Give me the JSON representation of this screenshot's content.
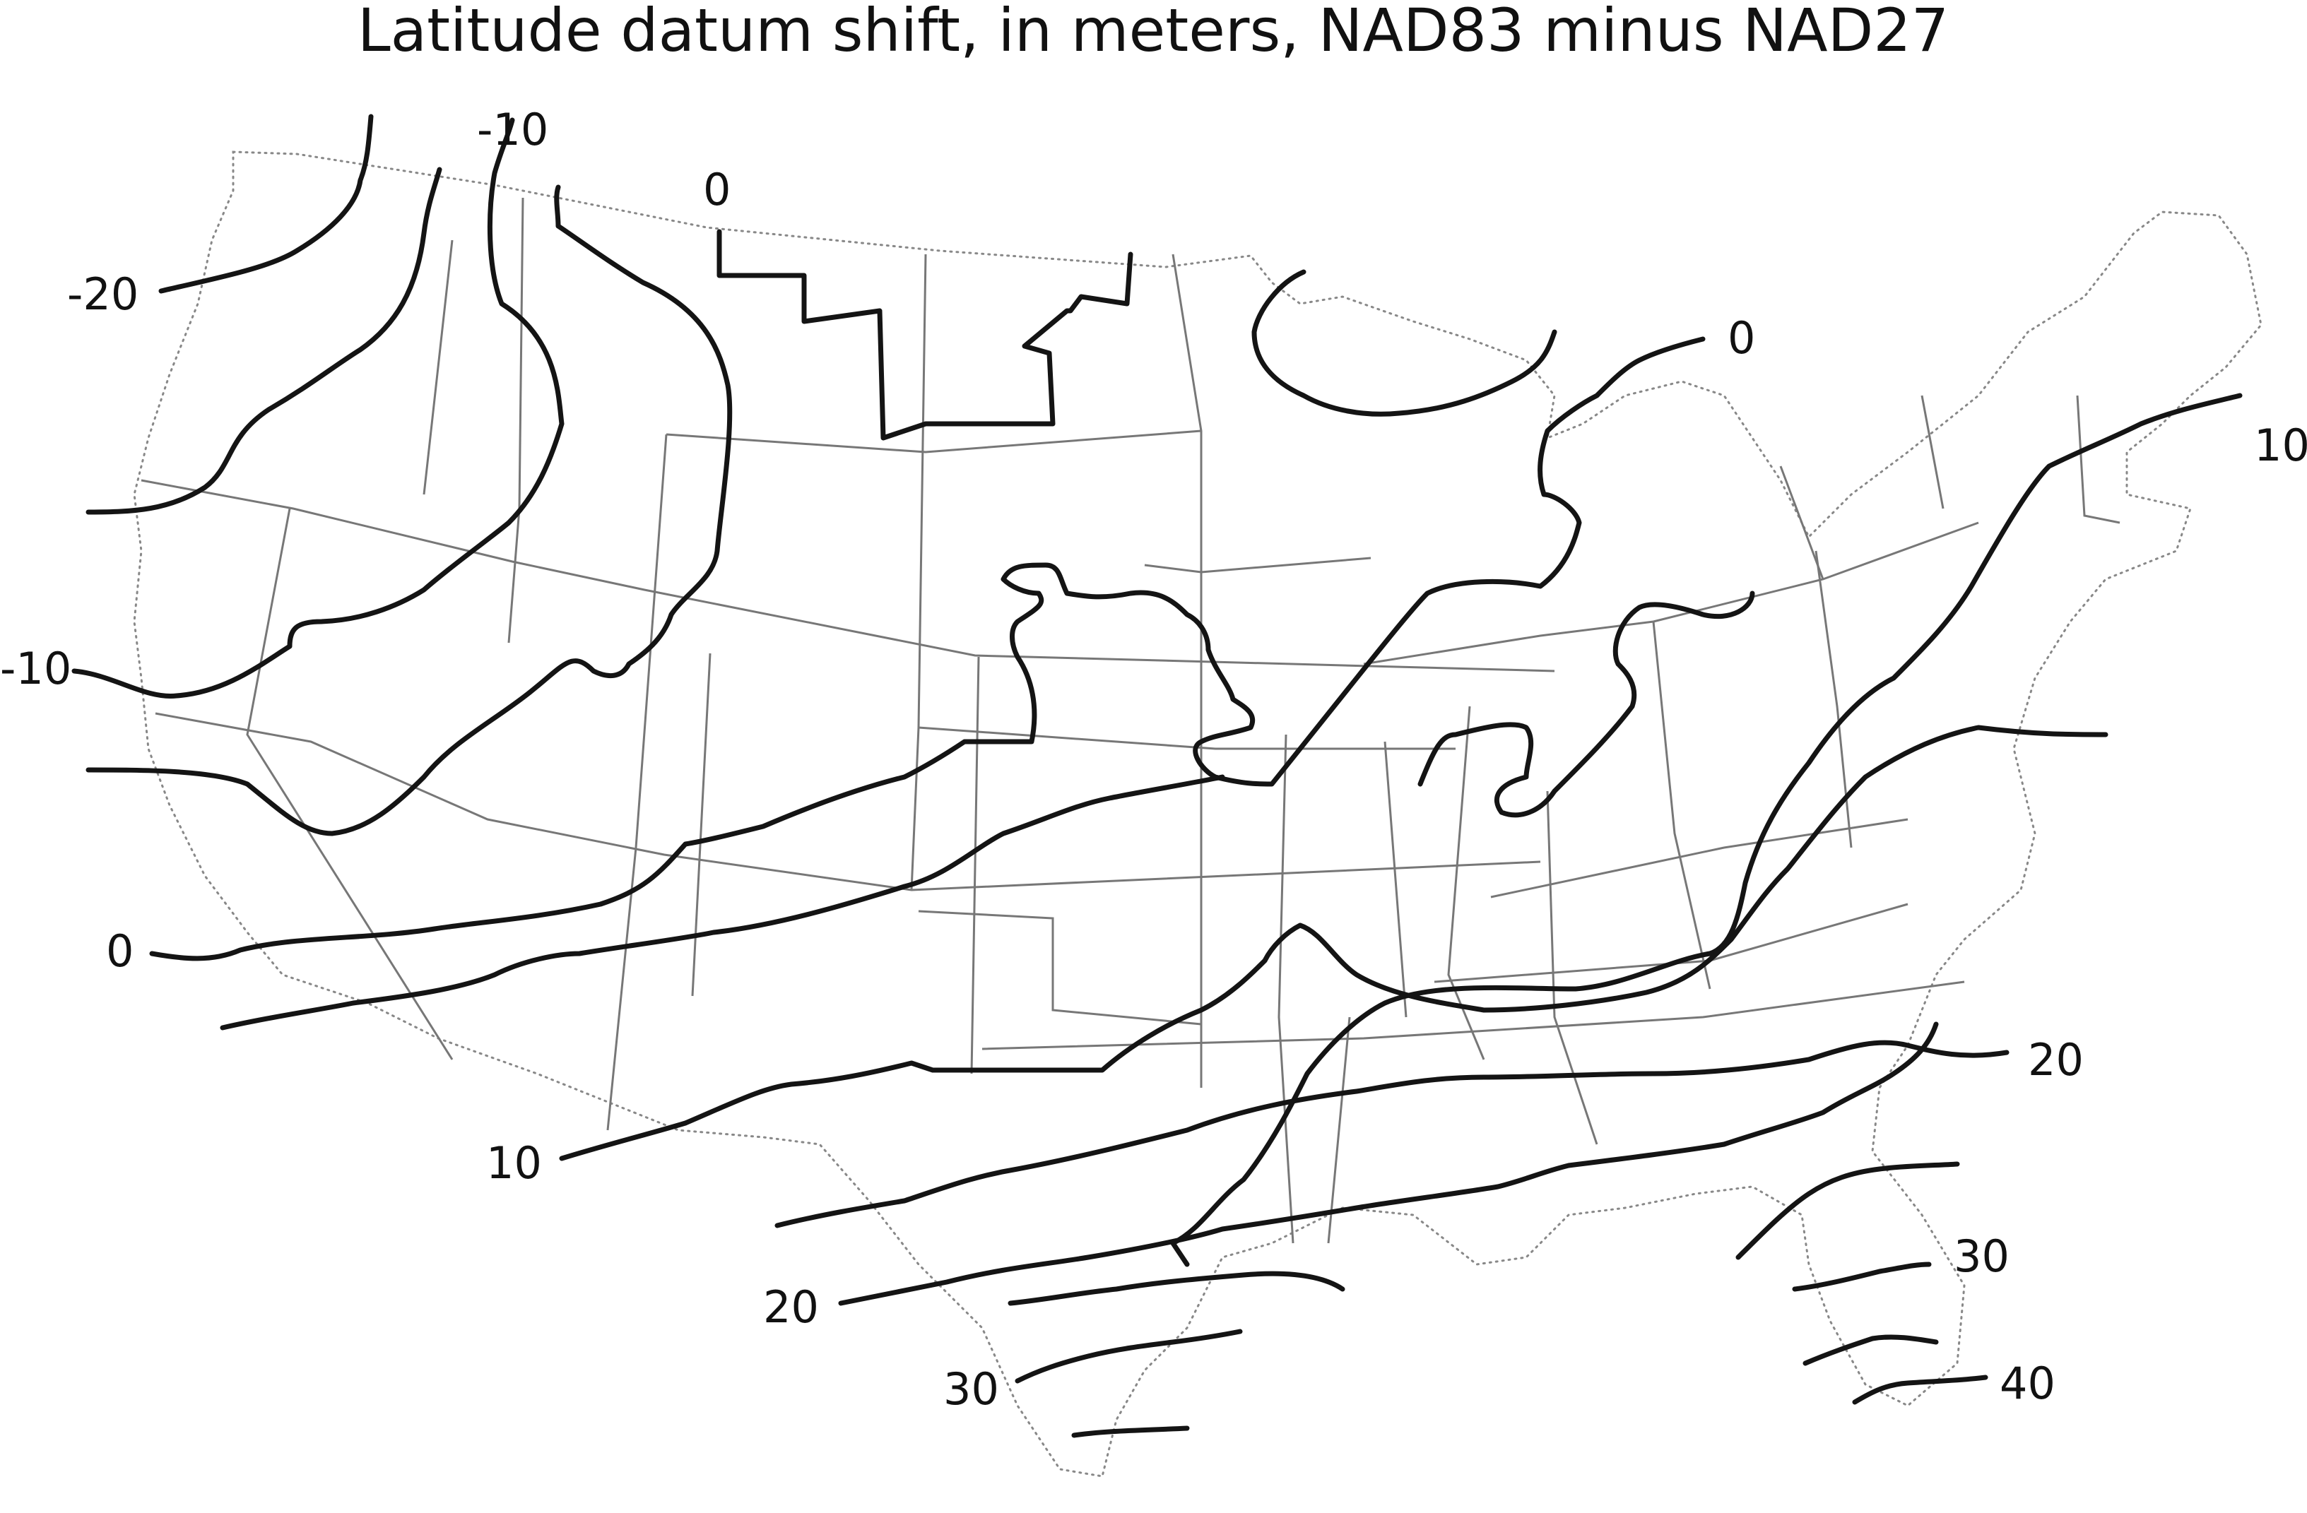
{
  "title": "Latitude datum shift, in meters, NAD83 minus NAD27",
  "colors": {
    "background": "#ffffff",
    "contour": "#141414",
    "state_boundary": "#777777",
    "coastline": "#888888",
    "text": "#111111"
  },
  "map": {
    "region": "Conterminous United States",
    "quantity": "Latitude datum shift",
    "unit": "meters",
    "contour_interval": 10,
    "contour_levels": [
      -20,
      -10,
      0,
      10,
      20,
      30,
      40
    ]
  },
  "labels": [
    {
      "id": "label-neg20-northwest",
      "text": "-20"
    },
    {
      "id": "label-neg10-north",
      "text": "-10"
    },
    {
      "id": "label-0-montana",
      "text": "0"
    },
    {
      "id": "label-0-great-lakes",
      "text": "0"
    },
    {
      "id": "label-10-new-england",
      "text": "10"
    },
    {
      "id": "label-neg10-west",
      "text": "-10"
    },
    {
      "id": "label-0-california",
      "text": "0"
    },
    {
      "id": "label-10-southwest",
      "text": "10"
    },
    {
      "id": "label-20-atlantic",
      "text": "20"
    },
    {
      "id": "label-20-texas",
      "text": "20"
    },
    {
      "id": "label-30-texas",
      "text": "30"
    },
    {
      "id": "label-30-florida",
      "text": "30"
    },
    {
      "id": "label-40-florida",
      "text": "40"
    }
  ]
}
